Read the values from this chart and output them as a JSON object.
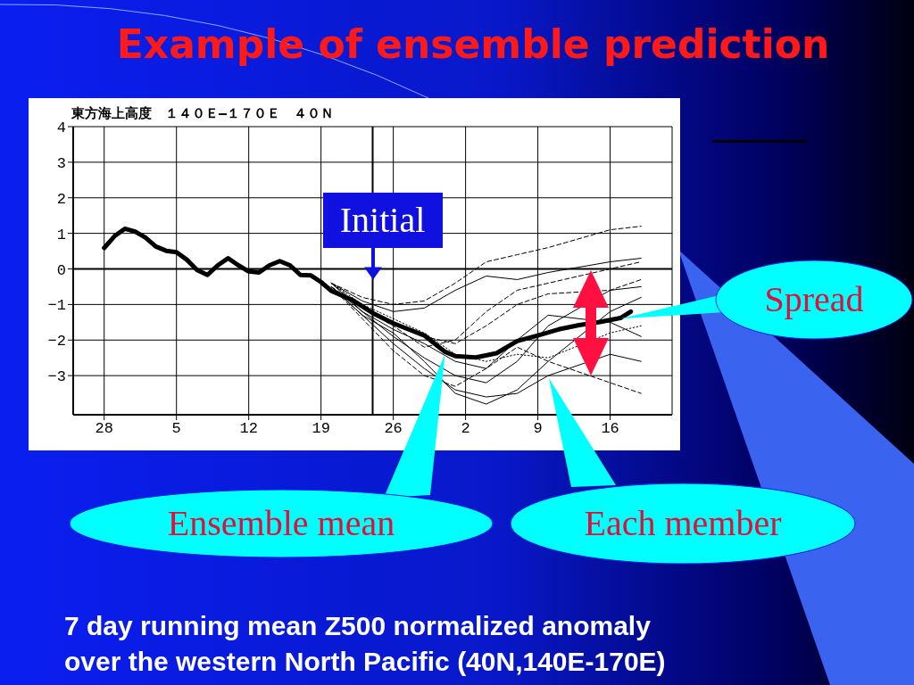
{
  "chart_data": {
    "type": "line",
    "title": "Example of ensemble prediction",
    "subtitle": "東方海上高度　１４０Ｅ—１７０Ｅ　４０Ｎ",
    "xlim": [
      "--04-25",
      "--06-22"
    ],
    "xticks": [
      {
        "value": "--04-28",
        "label": "28"
      },
      {
        "value": "--05-05",
        "label": "5"
      },
      {
        "value": "--05-12",
        "label": "12"
      },
      {
        "value": "--05-19",
        "label": "19"
      },
      {
        "value": "--05-26",
        "label": "26"
      },
      {
        "value": "--06-02",
        "label": "2"
      },
      {
        "value": "--06-09",
        "label": "9"
      },
      {
        "value": "--06-16",
        "label": "16"
      }
    ],
    "ylim": [
      -4.1,
      4
    ],
    "yticks": [
      {
        "value": -3,
        "label": "−3"
      },
      {
        "value": -2,
        "label": "−2"
      },
      {
        "value": -1,
        "label": "−1"
      },
      0,
      1,
      2,
      3,
      4
    ],
    "grid": true,
    "legend": false,
    "marker": "none",
    "ref_lines": [
      {
        "axis": "x",
        "value": "--05-24",
        "color": "#000000"
      },
      {
        "axis": "y",
        "value": 0,
        "color": "#000000"
      }
    ],
    "x": [
      "--05-20",
      "--05-23",
      "--05-26",
      "--05-29",
      "--06-01",
      "--06-04",
      "--06-07",
      "--06-10",
      "--06-16",
      "--06-19"
    ],
    "series": [
      {
        "color": "#000000",
        "line_style": "dashed",
        "values": [
          -0.4,
          -0.8,
          -1.0,
          -0.9,
          -0.4,
          0.2,
          0.4,
          0.6,
          1.1,
          1.2
        ]
      },
      {
        "color": "#000000",
        "line_style": "solid",
        "values": [
          -0.4,
          -0.9,
          -1.2,
          -1.1,
          -0.6,
          -0.2,
          -0.3,
          -0.1,
          0.2,
          0.3
        ]
      },
      {
        "color": "#000000",
        "line_style": "dashed",
        "values": [
          -0.5,
          -1.1,
          -1.6,
          -2.2,
          -2.0,
          -1.2,
          -0.6,
          -0.4,
          0.0,
          0.2
        ]
      },
      {
        "color": "#000000",
        "line_style": "solid",
        "values": [
          -0.5,
          -1.2,
          -1.9,
          -2.5,
          -3.0,
          -3.2,
          -2.6,
          -1.6,
          -0.6,
          -0.5
        ]
      },
      {
        "color": "#000000",
        "line_style": "solid",
        "values": [
          -0.5,
          -1.3,
          -2.1,
          -2.8,
          -3.4,
          -3.6,
          -3.5,
          -3.0,
          -2.4,
          -2.6
        ]
      },
      {
        "color": "#000000",
        "line_style": "dashed",
        "values": [
          -0.5,
          -1.4,
          -2.3,
          -3.0,
          -3.3,
          -2.8,
          -2.2,
          -2.6,
          -3.2,
          -3.5
        ]
      },
      {
        "color": "#000000",
        "line_style": "solid",
        "values": [
          -0.4,
          -1.2,
          -1.7,
          -2.1,
          -2.6,
          -2.8,
          -2.0,
          -1.3,
          -1.5,
          -1.9
        ]
      },
      {
        "color": "#000000",
        "line_style": "dotted",
        "values": [
          -0.4,
          -1.0,
          -1.4,
          -1.8,
          -2.4,
          -2.6,
          -2.4,
          -2.5,
          -1.8,
          -1.6
        ]
      },
      {
        "color": "#000000",
        "line_style": "solid",
        "values": [
          -0.5,
          -1.3,
          -1.8,
          -2.6,
          -3.5,
          -3.8,
          -3.4,
          -2.6,
          -1.2,
          -0.8
        ]
      },
      {
        "color": "#000000",
        "line_style": "dashed",
        "values": [
          -0.4,
          -1.1,
          -1.5,
          -1.9,
          -2.1,
          -1.6,
          -1.0,
          -0.7,
          -0.6,
          -0.3
        ]
      },
      {
        "color": "#000000",
        "line_style": "solid",
        "x": [
          "--04-28",
          "--04-29",
          "--04-30",
          "--05-01",
          "--05-02",
          "--05-03",
          "--05-04",
          "--05-05",
          "--05-06",
          "--05-07",
          "--05-08",
          "--05-09",
          "--05-10",
          "--05-11",
          "--05-12",
          "--05-13",
          "--05-14",
          "--05-15",
          "--05-16",
          "--05-17",
          "--05-18",
          "--05-19",
          "--05-20",
          "--05-22",
          "--05-24",
          "--05-26",
          "--05-29",
          "--05-31",
          "--06-01",
          "--06-03",
          "--06-05",
          "--06-07",
          "--06-09",
          "--06-11",
          "--06-13",
          "--06-15",
          "--06-17",
          "--06-18"
        ],
        "values": [
          0.59,
          0.92,
          1.13,
          1.05,
          0.88,
          0.63,
          0.51,
          0.47,
          0.26,
          -0.03,
          -0.17,
          0.1,
          0.3,
          0.1,
          -0.07,
          -0.1,
          0.1,
          0.22,
          0.1,
          -0.17,
          -0.18,
          -0.37,
          -0.62,
          -0.87,
          -1.24,
          -1.53,
          -1.87,
          -2.33,
          -2.45,
          -2.49,
          -2.37,
          -2.03,
          -1.87,
          -1.7,
          -1.58,
          -1.49,
          -1.38,
          -1.2
        ]
      }
    ],
    "annotations": [
      {
        "text": "Initial",
        "x": "--05-24",
        "y": -0.3
      },
      {
        "text": "Spread",
        "x": "--06-17",
        "y": -1.4
      },
      {
        "text": "Ensemble mean",
        "x": "--05-31",
        "y": -2.4
      },
      "Each member",
      "7 day running mean Z500 normalized anomaly\nover the western North Pacific  (40N,140E-170E)"
    ]
  }
}
